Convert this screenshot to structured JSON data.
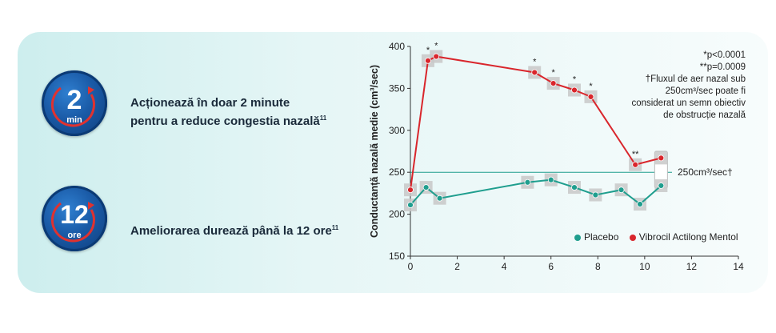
{
  "features": [
    {
      "badge_number": "2",
      "badge_unit": "min",
      "text_line1": "Acționează în doar 2 minute",
      "text_line2": "pentru a reduce congestia nazală",
      "mark": "11"
    },
    {
      "badge_number": "12",
      "badge_unit": "ore",
      "text_line1": "Ameliorarea durează până la 12 ore",
      "mark": "11"
    }
  ],
  "notes": {
    "p1": "*p<0.0001",
    "p2": "**p=0.0009",
    "dagger_line1": "†Fluxul de aer nazal sub",
    "dagger_line2": "250cm³/sec poate fi",
    "dagger_line3": "considerat un semn obiectiv",
    "dagger_line4": "de obstrucție nazală"
  },
  "colors": {
    "vibrocil": "#d9262c",
    "placebo": "#1f9e8e",
    "badge": "#1a5aa6"
  },
  "chart_data": {
    "type": "line",
    "ylabel": "Conductanță nazală medie (cm³/sec)",
    "xlabel": "",
    "xlim": [
      0,
      14
    ],
    "ylim": [
      150,
      400
    ],
    "x_ticks": [
      0,
      2,
      4,
      6,
      8,
      10,
      12,
      14
    ],
    "y_ticks": [
      150,
      200,
      250,
      300,
      350,
      400
    ],
    "reference_line": {
      "y": 250,
      "label": "250cm³/sec†"
    },
    "legend_position": "bottom-right",
    "series": [
      {
        "name": "Placebo",
        "x": [
          0,
          0.67,
          1.25,
          5.0,
          6.0,
          7.0,
          7.9,
          9.0,
          9.8,
          10.7
        ],
        "values": [
          211,
          232,
          219,
          238,
          241,
          232,
          223,
          229,
          212,
          234
        ]
      },
      {
        "name": "Vibrocil Actilong Mentol",
        "x": [
          0,
          0.75,
          1.1,
          5.3,
          6.1,
          7.0,
          7.7,
          9.6,
          10.7
        ],
        "values": [
          229,
          383,
          388,
          369,
          356,
          348,
          340,
          259,
          267
        ],
        "markers": [
          "",
          "*",
          "*",
          "*",
          "*",
          "*",
          "*",
          "**",
          ""
        ]
      }
    ]
  }
}
